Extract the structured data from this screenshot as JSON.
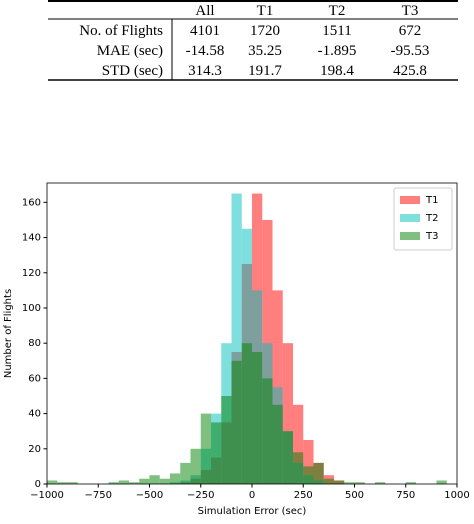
{
  "table": {
    "header": [
      "All",
      "T1",
      "T2",
      "T3"
    ],
    "rows": [
      [
        "No. of Flights",
        "4101",
        "1720",
        "1511",
        "672"
      ],
      [
        "MAE (sec)",
        "-14.58",
        "35.25",
        "-1.895",
        "-95.53"
      ],
      [
        "STD (sec)",
        "314.3",
        "191.7",
        "198.4",
        "425.8"
      ]
    ]
  },
  "chart_data": {
    "type": "histogram",
    "xlabel": "Simulation Error (sec)",
    "ylabel": "Number of Flights",
    "bins": [
      -1000,
      -950,
      -900,
      -850,
      -800,
      -750,
      -700,
      -650,
      -600,
      -550,
      -500,
      -450,
      -400,
      -350,
      -300,
      -250,
      -200,
      -150,
      -100,
      -50,
      0,
      50,
      100,
      150,
      200,
      250,
      300,
      350,
      400,
      450,
      500,
      550,
      600,
      650,
      700,
      750,
      800,
      850,
      900,
      950,
      1000
    ],
    "series": [
      {
        "name": "T1",
        "color": "#ff0000",
        "values": [
          0,
          0,
          0,
          0,
          0,
          0,
          0,
          0,
          0,
          0,
          0,
          0,
          0,
          1,
          3,
          8,
          15,
          35,
          75,
          125,
          165,
          150,
          110,
          80,
          45,
          25,
          12,
          5,
          2,
          0,
          0,
          0,
          0,
          0,
          0,
          0,
          0,
          0,
          0,
          0
        ]
      },
      {
        "name": "T2",
        "color": "#00bfbf",
        "values": [
          0,
          0,
          0,
          0,
          0,
          0,
          0,
          0,
          0,
          0,
          0,
          0,
          1,
          2,
          5,
          20,
          40,
          80,
          165,
          145,
          110,
          80,
          55,
          30,
          12,
          5,
          2,
          0,
          0,
          0,
          0,
          0,
          0,
          0,
          0,
          0,
          0,
          0,
          0,
          0
        ]
      },
      {
        "name": "T3",
        "color": "#008000",
        "values": [
          2,
          1,
          1,
          0,
          0,
          0,
          1,
          2,
          1,
          3,
          5,
          3,
          6,
          12,
          20,
          40,
          35,
          50,
          70,
          80,
          75,
          60,
          45,
          30,
          18,
          10,
          12,
          3,
          2,
          1,
          1,
          0,
          1,
          0,
          0,
          1,
          0,
          0,
          2,
          0
        ]
      }
    ],
    "xlim": [
      -1000,
      1000
    ],
    "ylim": [
      0,
      171
    ],
    "xticks": [
      {
        "value": -1000,
        "label": "−1000"
      },
      {
        "value": -750,
        "label": "−750"
      },
      {
        "value": -500,
        "label": "−500"
      },
      {
        "value": -250,
        "label": "−250"
      },
      0,
      250,
      500,
      750,
      1000
    ],
    "yticks": [
      0,
      20,
      40,
      60,
      80,
      100,
      120,
      140,
      160
    ],
    "legend": "upper right"
  }
}
